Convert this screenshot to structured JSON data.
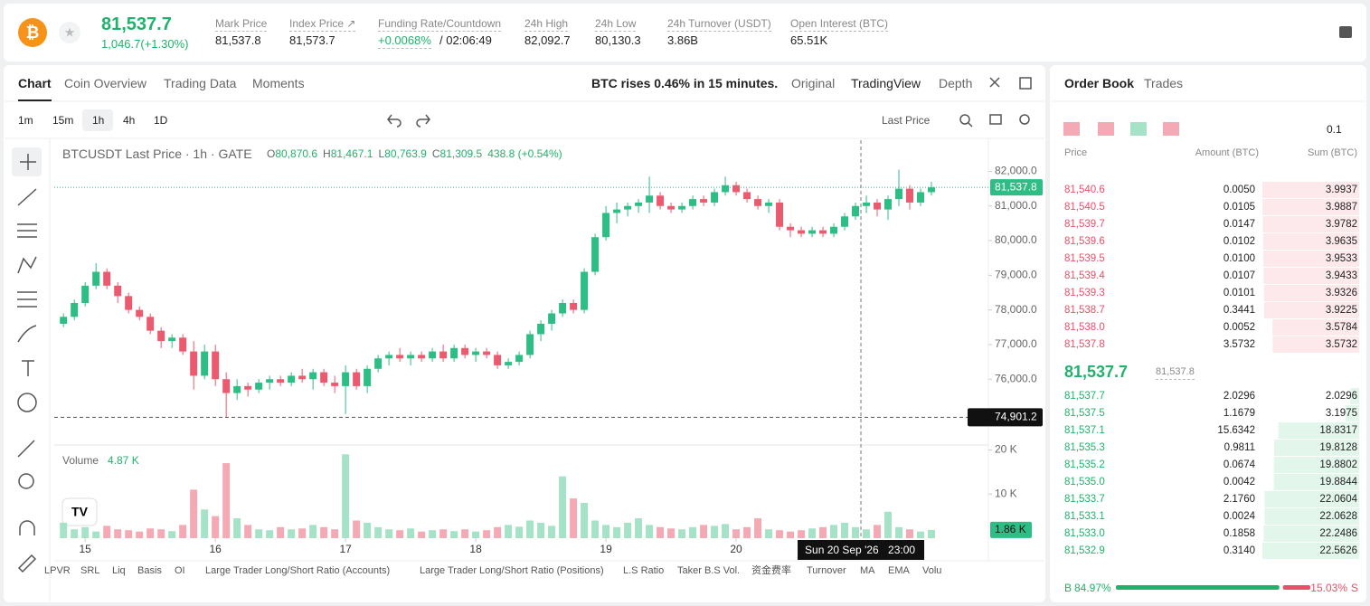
{
  "header": {
    "price": "81,537.7",
    "change": "1,046.7(+1.30%)",
    "stats": [
      {
        "label": "Mark Price",
        "value": "81,537.8"
      },
      {
        "label": "Index Price ↗",
        "value": "81,573.7"
      },
      {
        "label": "Funding Rate/Countdown",
        "value": "+0.0068%",
        "extra": "/ 02:06:49"
      },
      {
        "label": "24h High",
        "value": "82,092.7"
      },
      {
        "label": "24h Low",
        "value": "80,130.3"
      },
      {
        "label": "24h Turnover (USDT)",
        "value": "3.86B"
      },
      {
        "label": "Open Interest (BTC)",
        "value": "65.51K"
      }
    ]
  },
  "tabs": [
    "Chart",
    "Coin Overview",
    "Trading Data",
    "Moments"
  ],
  "news": "BTC rises 0.46% in 15 minutes.",
  "views": [
    "Original",
    "TradingView",
    "Depth"
  ],
  "intervals": [
    "1m",
    "15m",
    "1h",
    "4h",
    "1D"
  ],
  "price_type": "Last Price",
  "legend": {
    "symbol": "BTCUSDT Last Price · 1h · GATE",
    "parts": [
      "O",
      "80,870.6",
      "H",
      "81,467.1",
      "L",
      "80,763.9",
      "C",
      "81,309.5",
      "438.8 (+0.54%)"
    ],
    "volume": "Volume",
    "volume_value": "4.87 K"
  },
  "chart_data": {
    "type": "candlestick",
    "xlim": [
      -5.7,
      166.5
    ],
    "xticks": [
      {
        "value": 0,
        "label": "15"
      },
      {
        "value": 24,
        "label": "16"
      },
      {
        "value": 48,
        "label": "17"
      },
      {
        "value": 72,
        "label": "18"
      },
      {
        "value": 96,
        "label": "19"
      },
      {
        "value": 120,
        "label": "20"
      }
    ],
    "ylim": [
      74100,
      82900
    ],
    "yticks": [
      {
        "value": 82000,
        "label": "82,000.0"
      },
      {
        "value": 81000,
        "label": "81,000.0"
      },
      {
        "value": 80000,
        "label": "80,000.0"
      },
      {
        "value": 79000,
        "label": "79,000.0"
      },
      {
        "value": 78000,
        "label": "78,000.0"
      },
      {
        "value": 77000,
        "label": "77,000.0"
      },
      {
        "value": 76000,
        "label": "76,000.0"
      }
    ],
    "y2lim": [
      0,
      20.5
    ],
    "y2ticks": [
      {
        "value": 20,
        "label": "20 K"
      },
      {
        "value": 10,
        "label": "10 K"
      }
    ],
    "last_price": {
      "value": 81537.8,
      "label": "81,537.8"
    },
    "low_marker": {
      "value": 74901.2,
      "label": "74,901.2"
    },
    "last_volume": {
      "value": 1.86,
      "label": "1.86 K"
    },
    "crosshair": {
      "x": 143,
      "date": "Sun 20 Sep '26",
      "time": "23:00"
    },
    "up_color": "#2ebd85",
    "down_color": "#ea5b6f",
    "up_volume_color": "#a6e2c7",
    "down_volume_color": "#f4aab4",
    "x": [
      -4,
      -2,
      0,
      2,
      4,
      6,
      8,
      10,
      12,
      14,
      16,
      18,
      20,
      22,
      24,
      26,
      28,
      30,
      32,
      34,
      36,
      38,
      40,
      42,
      44,
      46,
      48,
      50,
      52,
      54,
      56,
      58,
      60,
      62,
      64,
      66,
      68,
      70,
      72,
      74,
      76,
      78,
      80,
      82,
      84,
      86,
      88,
      90,
      92,
      94,
      96,
      98,
      100,
      102,
      104,
      106,
      108,
      110,
      112,
      114,
      116,
      118,
      120,
      122,
      124,
      126,
      128,
      130,
      132,
      134,
      136,
      138,
      140,
      142,
      144,
      146,
      148,
      150,
      152,
      154,
      156
    ],
    "candles": [
      [
        77600,
        77900,
        77500,
        77800
      ],
      [
        77800,
        78300,
        77700,
        78200
      ],
      [
        78200,
        78800,
        78100,
        78700
      ],
      [
        78700,
        79350,
        78600,
        79100
      ],
      [
        79100,
        79200,
        78600,
        78700
      ],
      [
        78700,
        78800,
        78200,
        78400
      ],
      [
        78400,
        78500,
        77900,
        78000
      ],
      [
        78000,
        78100,
        77700,
        77800
      ],
      [
        77800,
        77900,
        77300,
        77400
      ],
      [
        77400,
        77500,
        76900,
        77100
      ],
      [
        77100,
        77300,
        76900,
        77200
      ],
      [
        77200,
        77300,
        76700,
        76800
      ],
      [
        76800,
        77100,
        75700,
        76100
      ],
      [
        76100,
        77000,
        76000,
        76800
      ],
      [
        76800,
        77000,
        75800,
        76000
      ],
      [
        76000,
        76200,
        74901.2,
        75600
      ],
      [
        75600,
        76000,
        75400,
        75800
      ],
      [
        75800,
        75900,
        75500,
        75700
      ],
      [
        75700,
        76000,
        75600,
        75900
      ],
      [
        75900,
        76100,
        75700,
        76000
      ],
      [
        76000,
        76100,
        75800,
        75900
      ],
      [
        75900,
        76200,
        75800,
        76100
      ],
      [
        76100,
        76300,
        75900,
        76000
      ],
      [
        76000,
        76300,
        75700,
        76200
      ],
      [
        76200,
        76300,
        75800,
        75900
      ],
      [
        75900,
        76100,
        75600,
        75800
      ],
      [
        75800,
        76400,
        75000,
        76200
      ],
      [
        76200,
        76300,
        75700,
        75800
      ],
      [
        75800,
        76400,
        75600,
        76300
      ],
      [
        76300,
        76700,
        76200,
        76600
      ],
      [
        76600,
        76800,
        76400,
        76700
      ],
      [
        76700,
        76900,
        76500,
        76600
      ],
      [
        76600,
        76800,
        76400,
        76700
      ],
      [
        76700,
        76800,
        76500,
        76600
      ],
      [
        76600,
        76900,
        76500,
        76800
      ],
      [
        76800,
        77000,
        76500,
        76600
      ],
      [
        76600,
        77000,
        76500,
        76900
      ],
      [
        76900,
        77000,
        76600,
        76700
      ],
      [
        76700,
        76900,
        76500,
        76800
      ],
      [
        76800,
        76900,
        76600,
        76700
      ],
      [
        76700,
        76800,
        76300,
        76400
      ],
      [
        76400,
        76600,
        76300,
        76500
      ],
      [
        76500,
        76800,
        76400,
        76700
      ],
      [
        76700,
        77400,
        76600,
        77300
      ],
      [
        77300,
        77700,
        77100,
        77600
      ],
      [
        77600,
        78000,
        77400,
        77900
      ],
      [
        77900,
        78300,
        77800,
        78200
      ],
      [
        78200,
        78300,
        77900,
        78000
      ],
      [
        78000,
        79200,
        77900,
        79100
      ],
      [
        79100,
        80200,
        79000,
        80100
      ],
      [
        80100,
        81000,
        80000,
        80800
      ],
      [
        80800,
        81100,
        80500,
        80900
      ],
      [
        80900,
        81100,
        80700,
        81000
      ],
      [
        81000,
        81200,
        80800,
        81100
      ],
      [
        81100,
        81850,
        80800,
        81300
      ],
      [
        81300,
        81400,
        80900,
        81000
      ],
      [
        81000,
        81100,
        80800,
        80900
      ],
      [
        80900,
        81100,
        80800,
        81000
      ],
      [
        81000,
        81300,
        80900,
        81200
      ],
      [
        81200,
        81300,
        81000,
        81100
      ],
      [
        81100,
        81500,
        81000,
        81400
      ],
      [
        81400,
        81850,
        81300,
        81600
      ],
      [
        81600,
        81700,
        81300,
        81400
      ],
      [
        81400,
        81500,
        81100,
        81200
      ],
      [
        81200,
        81300,
        80900,
        81000
      ],
      [
        81000,
        81200,
        80800,
        81100
      ],
      [
        81100,
        81200,
        80300,
        80400
      ],
      [
        80400,
        80500,
        80100,
        80300
      ],
      [
        80300,
        80400,
        80100,
        80200
      ],
      [
        80200,
        80400,
        80100,
        80300
      ],
      [
        80300,
        80400,
        80100,
        80200
      ],
      [
        80200,
        80500,
        80100,
        80400
      ],
      [
        80400,
        80800,
        80300,
        80700
      ],
      [
        80700,
        81100,
        80600,
        81000
      ],
      [
        81000,
        81300,
        80800,
        81100
      ],
      [
        81100,
        81200,
        80700,
        80900
      ],
      [
        80900,
        81300,
        80600,
        81200
      ],
      [
        81200,
        82050,
        81000,
        81500
      ],
      [
        81500,
        81600,
        80900,
        81100
      ],
      [
        81100,
        81500,
        81000,
        81400
      ],
      [
        81400,
        81700,
        81300,
        81537.8
      ]
    ],
    "volumes": [
      3.5,
      2.0,
      2.5,
      1.5,
      2.8,
      2.0,
      1.8,
      1.5,
      2.2,
      2.0,
      1.6,
      3.0,
      11.0,
      6.5,
      5.0,
      17.0,
      4.5,
      3.0,
      2.0,
      1.8,
      2.5,
      2.0,
      2.2,
      3.0,
      2.5,
      2.0,
      19.0,
      4.0,
      3.5,
      2.5,
      2.0,
      1.8,
      2.2,
      1.5,
      1.8,
      2.0,
      1.6,
      2.0,
      1.5,
      1.8,
      2.5,
      3.0,
      2.6,
      4.0,
      3.5,
      2.8,
      14.0,
      9.0,
      8.0,
      4.0,
      3.0,
      2.5,
      3.5,
      4.5,
      3.0,
      2.5,
      2.2,
      2.0,
      2.5,
      3.0,
      2.8,
      3.2,
      2.0,
      2.5,
      4.5,
      2.0,
      1.8,
      1.5,
      1.8,
      2.2,
      2.5,
      3.0,
      3.5,
      2.5,
      2.0,
      3.0,
      6.0,
      2.5,
      2.0,
      1.5,
      1.86
    ]
  },
  "indicators": [
    "LPVR",
    "SRL",
    "Liq",
    "Basis",
    "OI",
    "Large Trader Long/Short Ratio (Accounts)",
    "Large Trader Long/Short Ratio (Positions)",
    "L.S Ratio",
    "Taker B.S Vol.",
    "资金费率",
    "Turnover",
    "MA",
    "EMA",
    "Volu"
  ],
  "order_book": {
    "tabs": [
      "Order Book",
      "Trades"
    ],
    "precision": "0.1",
    "columns": [
      "Price",
      "Amount (BTC)",
      "Sum (BTC)"
    ],
    "asks": [
      [
        "81,540.6",
        "0.0050",
        "3.9937"
      ],
      [
        "81,540.5",
        "0.0105",
        "3.9887"
      ],
      [
        "81,539.7",
        "0.0147",
        "3.9782"
      ],
      [
        "81,539.6",
        "0.0102",
        "3.9635"
      ],
      [
        "81,539.5",
        "0.0100",
        "3.9533"
      ],
      [
        "81,539.4",
        "0.0107",
        "3.9433"
      ],
      [
        "81,539.3",
        "0.0101",
        "3.9326"
      ],
      [
        "81,538.7",
        "0.3441",
        "3.9225"
      ],
      [
        "81,538.0",
        "0.0052",
        "3.5784"
      ],
      [
        "81,537.8",
        "3.5732",
        "3.5732"
      ]
    ],
    "mid_price": "81,537.7",
    "mark_price": "81,537.8",
    "bids": [
      [
        "81,537.7",
        "2.0296",
        "2.0296"
      ],
      [
        "81,537.5",
        "1.1679",
        "3.1975"
      ],
      [
        "81,537.1",
        "15.6342",
        "18.8317"
      ],
      [
        "81,535.3",
        "0.9811",
        "19.8128"
      ],
      [
        "81,535.2",
        "0.0674",
        "19.8802"
      ],
      [
        "81,535.0",
        "0.0042",
        "19.8844"
      ],
      [
        "81,533.7",
        "2.1760",
        "22.0604"
      ],
      [
        "81,533.1",
        "0.0024",
        "22.0628"
      ],
      [
        "81,533.0",
        "0.1858",
        "22.2486"
      ],
      [
        "81,532.9",
        "0.3140",
        "22.5626"
      ]
    ],
    "buy_label": "B",
    "buy_ratio": "84.97%",
    "sell_ratio": "15.03%",
    "sell_label": "S"
  }
}
